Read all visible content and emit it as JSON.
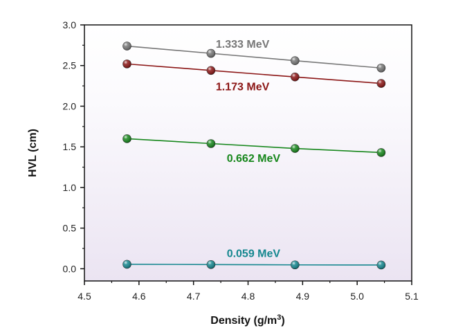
{
  "chart_data": {
    "type": "line",
    "xlabel": "Density (g/m",
    "xlabel_sup": "3",
    "xlabel_end": ")",
    "ylabel": "HVL (cm)",
    "xlim": [
      4.5,
      5.1
    ],
    "ylim": [
      -0.15,
      3.0
    ],
    "xticks": [
      "4.5",
      "4.6",
      "4.7",
      "4.8",
      "4.9",
      "5.0",
      "5.1"
    ],
    "yticks": [
      "0.0",
      "0.5",
      "1.0",
      "1.5",
      "2.0",
      "2.5",
      "3.0"
    ],
    "x": [
      4.578,
      4.732,
      4.886,
      5.044
    ],
    "grid": false,
    "background": "gradient white to light lavender",
    "series": [
      {
        "name": "1.333 MeV",
        "values": [
          2.74,
          2.65,
          2.56,
          2.47
        ],
        "color": "#777777"
      },
      {
        "name": "1.173 MeV",
        "values": [
          2.52,
          2.44,
          2.36,
          2.28
        ],
        "color": "#8b1515"
      },
      {
        "name": "0.662 MeV",
        "values": [
          1.6,
          1.54,
          1.48,
          1.43
        ],
        "color": "#17871c"
      },
      {
        "name": "0.059 MeV",
        "values": [
          0.055,
          0.052,
          0.048,
          0.046
        ],
        "color": "#15878f"
      }
    ]
  }
}
